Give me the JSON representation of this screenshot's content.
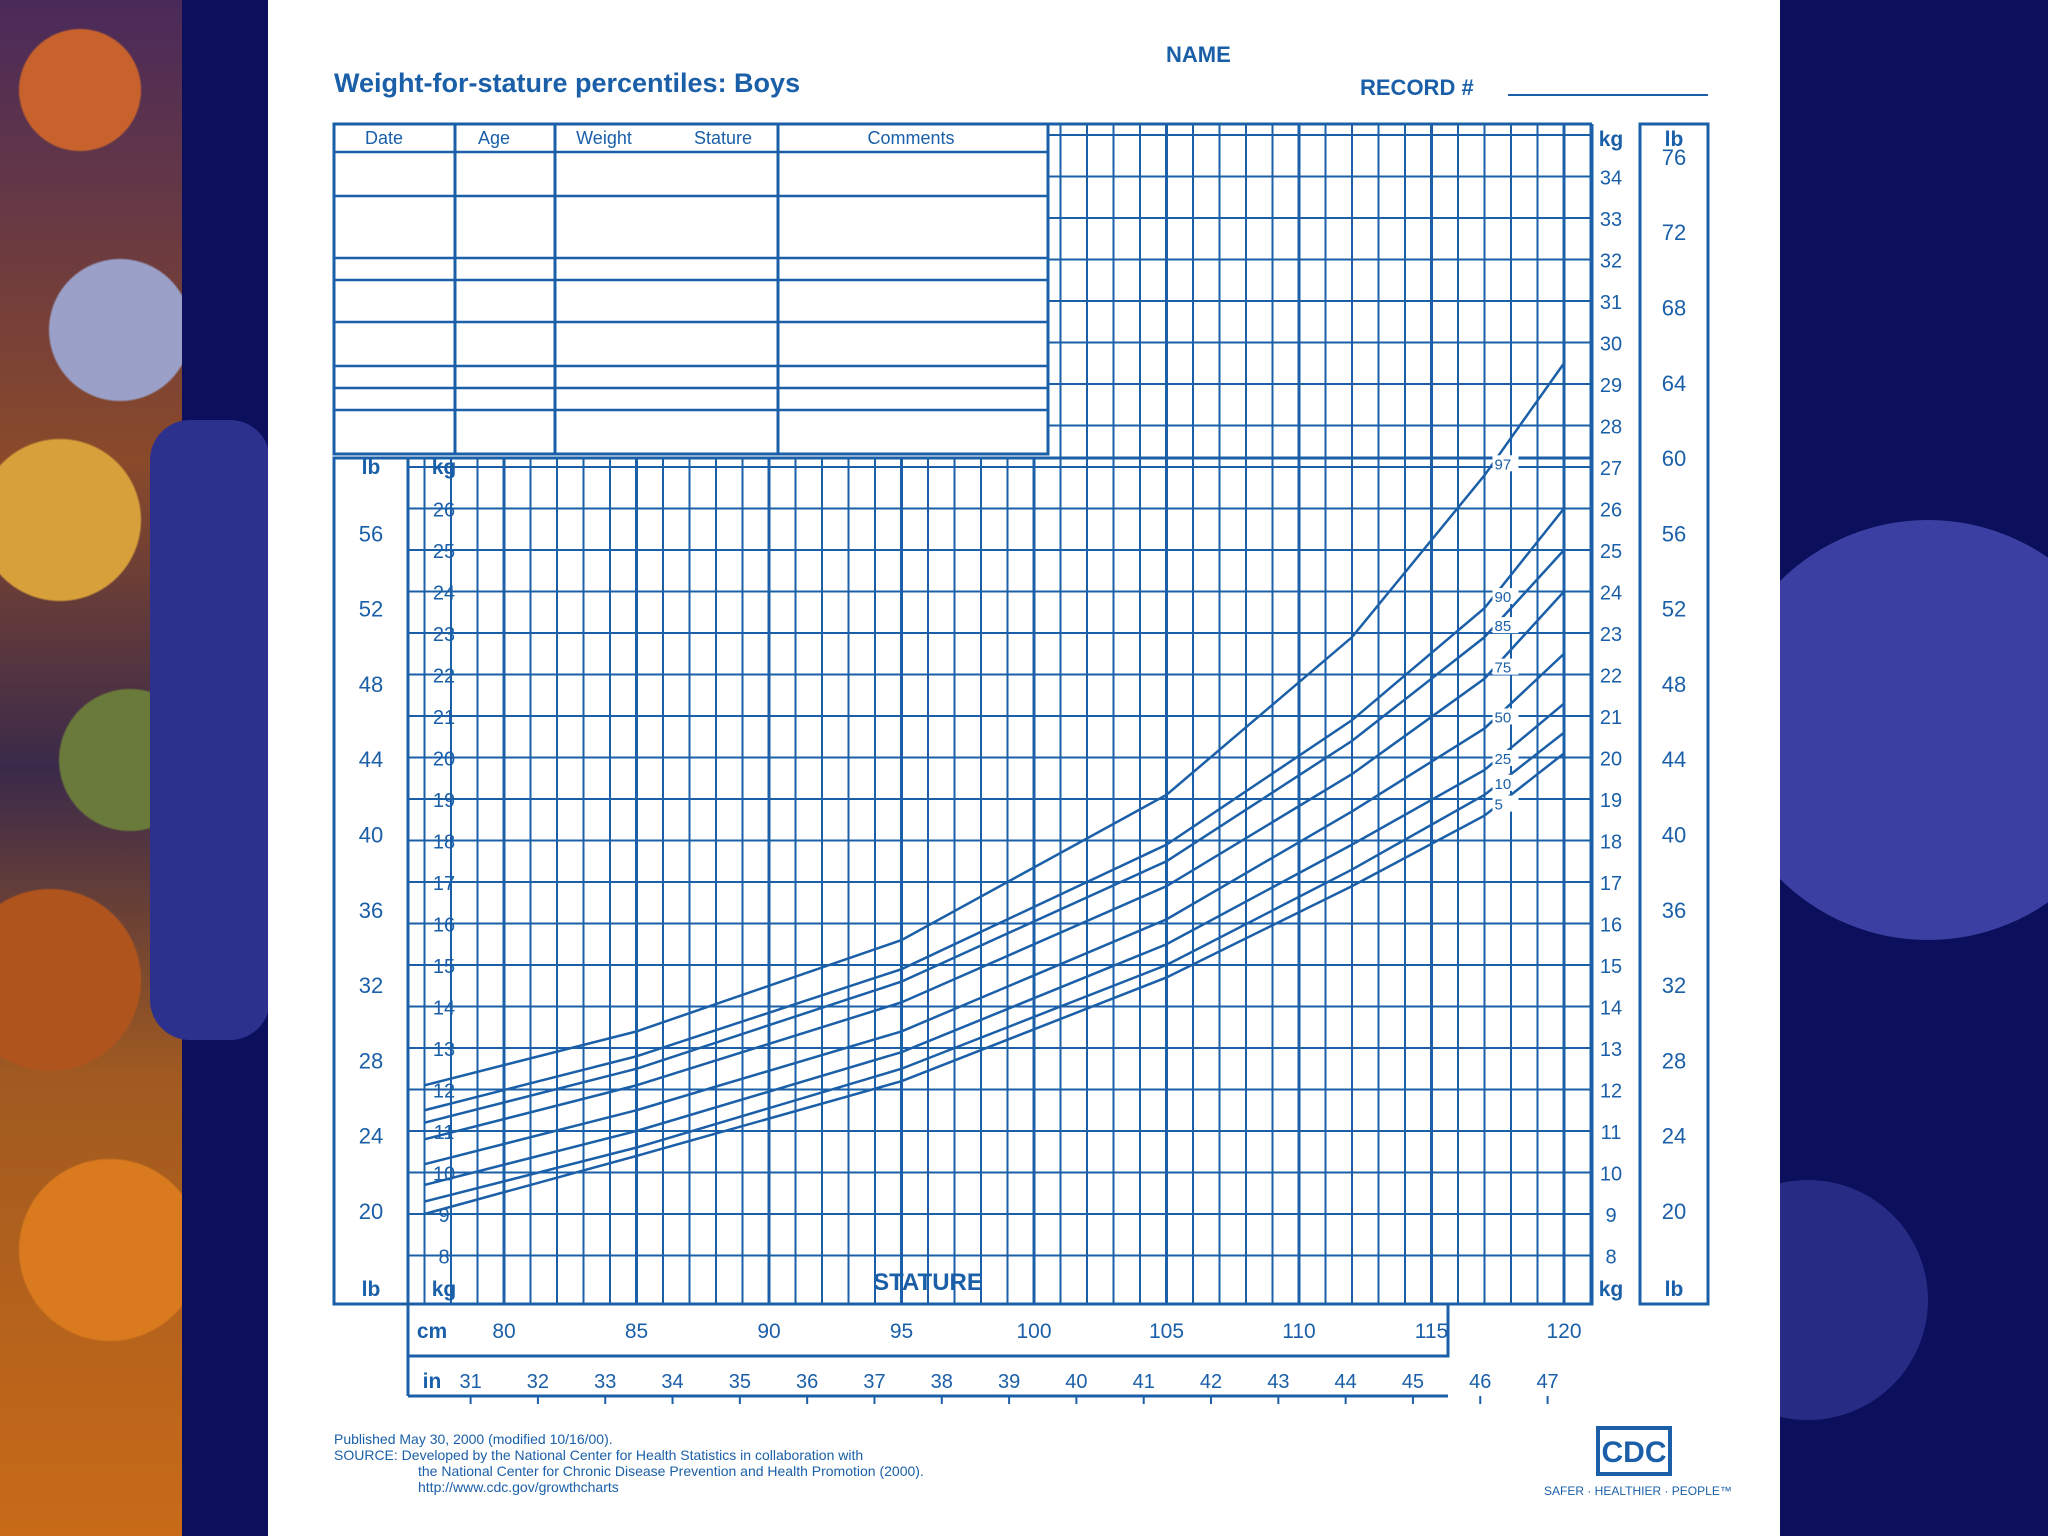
{
  "page": {
    "name_label": "NAME",
    "record_label": "RECORD #",
    "table_headers": [
      "Date",
      "Age",
      "Weight",
      "Stature",
      "Comments"
    ],
    "unit_lb": "lb",
    "unit_kg": "kg",
    "unit_cm": "cm",
    "unit_in": "in",
    "stature_label": "STATURE",
    "footer_lines": [
      "Published May 30, 2000 (modified 10/16/00).",
      "SOURCE: Developed by the National Center for Health Statistics in collaboration with",
      "the National Center for Chronic Disease Prevention and Health Promotion (2000).",
      "http://www.cdc.gov/growthcharts"
    ],
    "logo_text": "CDC",
    "logo_tagline": "SAFER · HEALTHIER · PEOPLE™",
    "colors": {
      "ink": "#1a5fa8",
      "paper": "#ffffff",
      "slide_bg": "#0b0f5c"
    }
  },
  "chart_data": {
    "type": "line",
    "title": "Weight-for-stature percentiles: Boys",
    "xlabel": "STATURE",
    "ylabel": "kg",
    "x_unit": "cm",
    "xlim": [
      77,
      121
    ],
    "ylim": [
      7,
      35
    ],
    "cm_ticks": [
      80,
      85,
      90,
      95,
      100,
      105,
      110,
      115,
      120
    ],
    "in_ticks": [
      31,
      32,
      33,
      34,
      35,
      36,
      37,
      38,
      39,
      40,
      41,
      42,
      43,
      44,
      45,
      46,
      47
    ],
    "kg_ticks_inner": [
      8,
      9,
      10,
      11,
      12,
      13,
      14,
      15,
      16,
      17,
      18,
      19,
      20,
      21,
      22,
      23,
      24,
      25,
      26
    ],
    "kg_ticks_right": [
      8,
      9,
      10,
      11,
      12,
      13,
      14,
      15,
      16,
      17,
      18,
      19,
      20,
      21,
      22,
      23,
      24,
      25,
      26,
      27,
      28,
      29,
      30,
      31,
      32,
      33,
      34
    ],
    "lb_ticks_left": [
      20,
      24,
      28,
      32,
      36,
      40,
      44,
      48,
      52,
      56
    ],
    "lb_ticks_right": [
      20,
      24,
      28,
      32,
      36,
      40,
      44,
      48,
      52,
      56,
      60,
      64,
      68,
      72,
      76
    ],
    "series": [
      {
        "name": "97",
        "x": [
          77,
          85,
          95,
          105,
          112,
          117,
          120
        ],
        "values": [
          12.1,
          13.4,
          15.6,
          19.1,
          22.9,
          26.8,
          29.5
        ]
      },
      {
        "name": "90",
        "x": [
          77,
          85,
          95,
          105,
          112,
          117,
          120
        ],
        "values": [
          11.5,
          12.8,
          14.9,
          17.9,
          20.9,
          23.6,
          26.0
        ]
      },
      {
        "name": "85",
        "x": [
          77,
          85,
          95,
          105,
          112,
          117,
          120
        ],
        "values": [
          11.2,
          12.5,
          14.6,
          17.5,
          20.4,
          22.9,
          25.0
        ]
      },
      {
        "name": "75",
        "x": [
          77,
          85,
          95,
          105,
          112,
          117,
          120
        ],
        "values": [
          10.8,
          12.1,
          14.1,
          16.9,
          19.6,
          21.9,
          24.0
        ]
      },
      {
        "name": "50",
        "x": [
          77,
          85,
          95,
          105,
          112,
          117,
          120
        ],
        "values": [
          10.2,
          11.5,
          13.4,
          16.1,
          18.7,
          20.7,
          22.5
        ]
      },
      {
        "name": "25",
        "x": [
          77,
          85,
          95,
          105,
          112,
          117,
          120
        ],
        "values": [
          9.7,
          11.0,
          12.9,
          15.5,
          17.9,
          19.7,
          21.3
        ]
      },
      {
        "name": "10",
        "x": [
          77,
          85,
          95,
          105,
          112,
          117,
          120
        ],
        "values": [
          9.3,
          10.6,
          12.5,
          15.0,
          17.3,
          19.1,
          20.6
        ]
      },
      {
        "name": "5",
        "x": [
          77,
          85,
          95,
          105,
          112,
          117,
          120
        ],
        "values": [
          9.0,
          10.4,
          12.2,
          14.7,
          16.9,
          18.6,
          20.1
        ]
      }
    ],
    "grid": true
  }
}
